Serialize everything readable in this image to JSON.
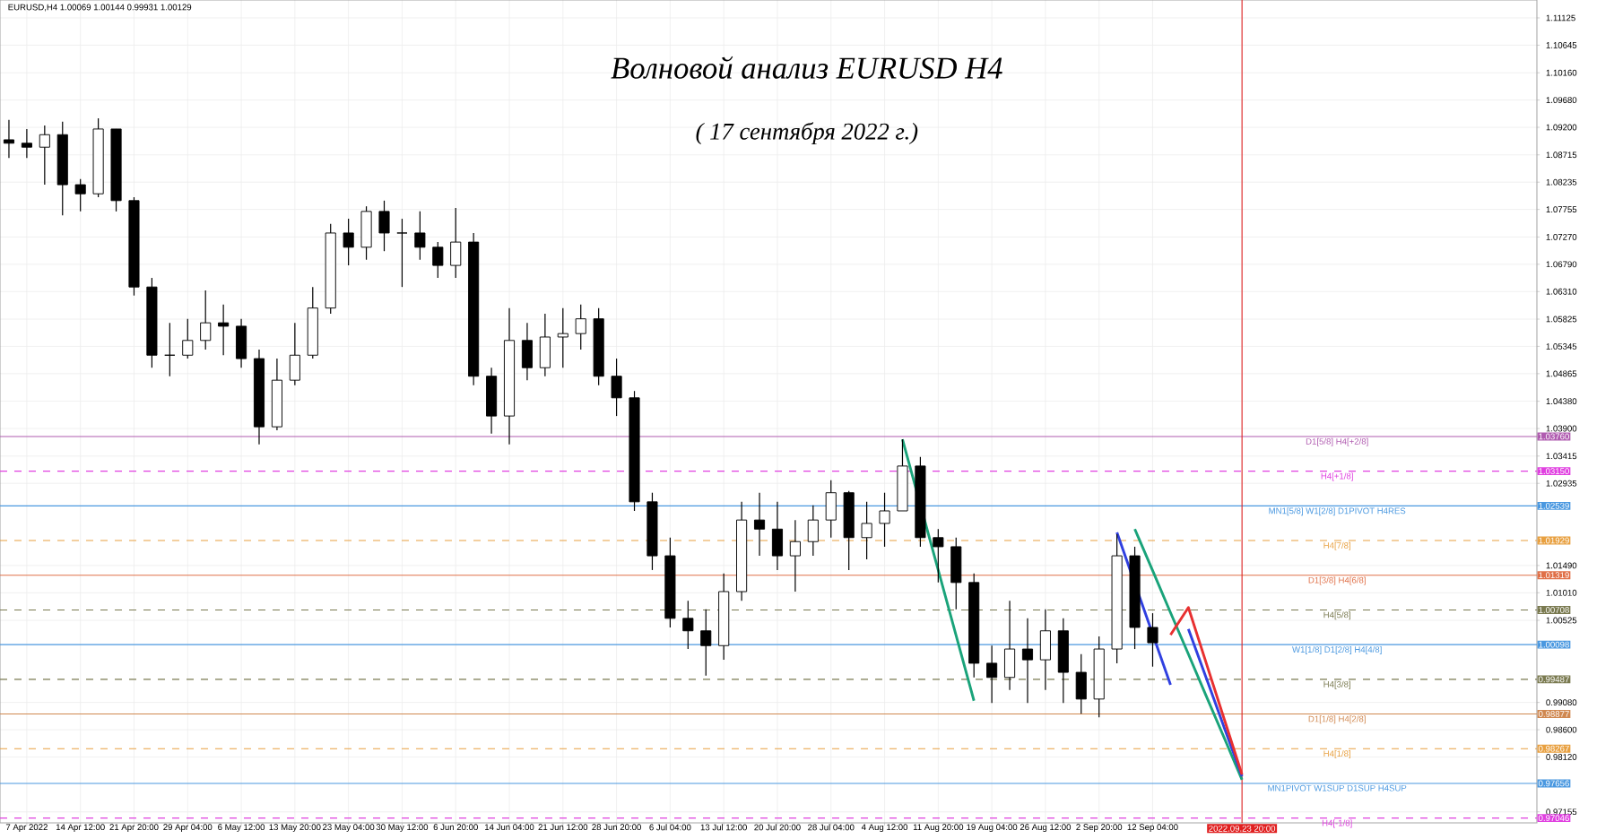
{
  "chart_data": {
    "type": "candlestick",
    "title": "Волновой анализ EURUSD H4",
    "subtitle": "( 17 сентября 2022 г.)",
    "color": "#000000",
    "grid": true,
    "marker": "none",
    "categories": [
      null,
      "7 Apr 2022",
      null,
      null,
      "14 Apr 12:00",
      null,
      null,
      "21 Apr 20:00",
      null,
      null,
      "29 Apr 04:00",
      null,
      null,
      "6 May 12:00",
      null,
      null,
      "13 May 20:00",
      null,
      null,
      "23 May 04:00",
      null,
      null,
      "30 May 12:00",
      null,
      null,
      "6 Jun 20:00",
      null,
      null,
      "14 Jun 04:00",
      null,
      null,
      "21 Jun 12:00",
      null,
      null,
      "28 Jun 20:00",
      null,
      null,
      "6 Jul 04:00",
      null,
      null,
      "13 Jul 12:00",
      null,
      null,
      "20 Jul 20:00",
      null,
      null,
      "28 Jul 04:00",
      null,
      null,
      "4 Aug 12:00",
      null,
      null,
      "11 Aug 20:00",
      null,
      null,
      "19 Aug 04:00",
      null,
      null,
      "26 Aug 12:00",
      null,
      null,
      "2 Sep 20:00",
      null,
      null,
      "12 Sep 04:00",
      null,
      null,
      null,
      null,
      "2022.09.23 20:00",
      null,
      null,
      null,
      null,
      null,
      null,
      null,
      null,
      null,
      null,
      null,
      null,
      null,
      null,
      null,
      null
    ],
    "ohlc": [
      [
        1.0898,
        1.0933,
        1.0866,
        1.0892
      ],
      [
        1.0892,
        1.0917,
        1.0866,
        1.0885
      ],
      [
        1.0885,
        1.0923,
        1.0819,
        1.0907
      ],
      [
        1.0907,
        1.093,
        1.0765,
        1.0819
      ],
      [
        1.0819,
        1.0829,
        1.0772,
        1.0803
      ],
      [
        1.0803,
        1.0936,
        1.0797,
        1.0917
      ],
      [
        1.0917,
        1.0917,
        1.0772,
        1.0791
      ],
      [
        1.0791,
        1.0797,
        1.0624,
        1.0639
      ],
      [
        1.0639,
        1.0655,
        1.0497,
        1.0519
      ],
      [
        1.0519,
        1.0576,
        1.0482,
        1.0519
      ],
      [
        1.0519,
        1.0583,
        1.0513,
        1.0545
      ],
      [
        1.0545,
        1.0633,
        1.0529,
        1.0576
      ],
      [
        1.0576,
        1.0608,
        1.0519,
        1.057
      ],
      [
        1.057,
        1.0583,
        1.0497,
        1.0513
      ],
      [
        1.0513,
        1.0529,
        1.0362,
        1.0393
      ],
      [
        1.0393,
        1.0513,
        1.0387,
        1.0475
      ],
      [
        1.0475,
        1.0576,
        1.0466,
        1.0519
      ],
      [
        1.0519,
        1.0639,
        1.0513,
        1.0602
      ],
      [
        1.0602,
        1.075,
        1.0592,
        1.0734
      ],
      [
        1.0734,
        1.0759,
        1.0677,
        1.0709
      ],
      [
        1.0709,
        1.0781,
        1.0687,
        1.0772
      ],
      [
        1.0772,
        1.0791,
        1.0702,
        1.0734
      ],
      [
        1.0734,
        1.0759,
        1.0639,
        1.0734
      ],
      [
        1.0734,
        1.0772,
        1.0687,
        1.0709
      ],
      [
        1.0709,
        1.0718,
        1.0655,
        1.0677
      ],
      [
        1.0677,
        1.0778,
        1.0655,
        1.0718
      ],
      [
        1.0718,
        1.0734,
        1.0466,
        1.0482
      ],
      [
        1.0482,
        1.0497,
        1.0381,
        1.0412
      ],
      [
        1.0412,
        1.0602,
        1.0362,
        1.0545
      ],
      [
        1.0545,
        1.0576,
        1.0475,
        1.0497
      ],
      [
        1.0497,
        1.0592,
        1.0482,
        1.0551
      ],
      [
        1.0551,
        1.0602,
        1.0497,
        1.0557
      ],
      [
        1.0557,
        1.0608,
        1.0529,
        1.0583
      ],
      [
        1.0583,
        1.0602,
        1.0466,
        1.0482
      ],
      [
        1.0482,
        1.0513,
        1.0412,
        1.0444
      ],
      [
        1.0444,
        1.0456,
        1.0245,
        1.0261
      ],
      [
        1.0261,
        1.0277,
        1.0141,
        1.0166
      ],
      [
        1.0166,
        1.0198,
        1.004,
        1.0056
      ],
      [
        1.0056,
        1.0087,
        1.0002,
        1.0034
      ],
      [
        1.0034,
        1.0072,
        0.9955,
        1.0008
      ],
      [
        1.0008,
        1.0135,
        0.9983,
        1.0103
      ],
      [
        1.0103,
        1.0261,
        1.0087,
        1.0229
      ],
      [
        1.0229,
        1.0277,
        1.0166,
        1.0213
      ],
      [
        1.0213,
        1.0261,
        1.0141,
        1.0166
      ],
      [
        1.0166,
        1.0229,
        1.0103,
        1.0191
      ],
      [
        1.0191,
        1.0255,
        1.0166,
        1.0229
      ],
      [
        1.0229,
        1.0299,
        1.0198,
        1.0277
      ],
      [
        1.0277,
        1.028,
        1.0141,
        1.0198
      ],
      [
        1.0198,
        1.0261,
        1.016,
        1.0223
      ],
      [
        1.0223,
        1.0277,
        1.0182,
        1.0245
      ],
      [
        1.0245,
        1.0371,
        1.0245,
        1.0324
      ],
      [
        1.0324,
        1.034,
        1.0182,
        1.0198
      ],
      [
        1.0198,
        1.0213,
        1.0119,
        1.0182
      ],
      [
        1.0182,
        1.0198,
        1.0072,
        1.0119
      ],
      [
        1.0119,
        1.0135,
        0.9952,
        0.9977
      ],
      [
        0.9977,
        1.0008,
        0.9907,
        0.9952
      ],
      [
        0.9952,
        1.0087,
        0.993,
        1.0002
      ],
      [
        1.0002,
        1.0056,
        0.9907,
        0.9983
      ],
      [
        0.9983,
        1.0072,
        0.993,
        1.0034
      ],
      [
        1.0034,
        1.0056,
        0.9907,
        0.9961
      ],
      [
        0.9961,
        0.9993,
        0.9888,
        0.9914
      ],
      [
        0.9914,
        1.0024,
        0.9882,
        1.0002
      ],
      [
        1.0002,
        1.0204,
        0.9977,
        1.0166
      ],
      [
        1.0166,
        1.0182,
        1.0002,
        1.004
      ],
      [
        1.004,
        1.0065,
        0.9971,
        1.0013
      ],
      null,
      null,
      null,
      null,
      null,
      null,
      null,
      null,
      null,
      null,
      null,
      null,
      null,
      null,
      null,
      null,
      null,
      null,
      null,
      null,
      null
    ],
    "series": [
      {
        "type": "line",
        "color": "#1aa37a",
        "values": [
          null,
          null,
          null,
          null,
          null,
          null,
          null,
          null,
          null,
          null,
          null,
          null,
          null,
          null,
          null,
          null,
          null,
          null,
          null,
          null,
          null,
          null,
          null,
          null,
          null,
          null,
          null,
          null,
          null,
          null,
          null,
          null,
          null,
          null,
          null,
          null,
          null,
          null,
          null,
          null,
          null,
          null,
          null,
          null,
          null,
          null,
          null,
          null,
          null,
          null,
          1.0371,
          1.0256,
          1.0141,
          1.0026,
          0.9911,
          null,
          null,
          null,
          null,
          null,
          null,
          null,
          null,
          null,
          null,
          null,
          null,
          null,
          null,
          null,
          null,
          null,
          null,
          null,
          null,
          null,
          null,
          null,
          null,
          null,
          null,
          null,
          null,
          null,
          null,
          null
        ]
      },
      {
        "type": "line",
        "color": "#1aa37a",
        "values": [
          null,
          null,
          null,
          null,
          null,
          null,
          null,
          null,
          null,
          null,
          null,
          null,
          null,
          null,
          null,
          null,
          null,
          null,
          null,
          null,
          null,
          null,
          null,
          null,
          null,
          null,
          null,
          null,
          null,
          null,
          null,
          null,
          null,
          null,
          null,
          null,
          null,
          null,
          null,
          null,
          null,
          null,
          null,
          null,
          null,
          null,
          null,
          null,
          null,
          null,
          null,
          null,
          null,
          null,
          null,
          null,
          null,
          null,
          null,
          null,
          null,
          null,
          null,
          1.0213,
          1.014,
          1.0066,
          0.9993,
          0.9919,
          0.9846,
          0.9772,
          null,
          null,
          null,
          null,
          null,
          null,
          null,
          null,
          null,
          null,
          null,
          null,
          null,
          null,
          null,
          null
        ]
      },
      {
        "type": "line",
        "color": "#3040e0",
        "values": [
          null,
          null,
          null,
          null,
          null,
          null,
          null,
          null,
          null,
          null,
          null,
          null,
          null,
          null,
          null,
          null,
          null,
          null,
          null,
          null,
          null,
          null,
          null,
          null,
          null,
          null,
          null,
          null,
          null,
          null,
          null,
          null,
          null,
          null,
          null,
          null,
          null,
          null,
          null,
          null,
          null,
          null,
          null,
          null,
          null,
          null,
          null,
          null,
          null,
          null,
          null,
          null,
          null,
          null,
          null,
          null,
          null,
          null,
          null,
          null,
          null,
          null,
          1.0207,
          null,
          null,
          0.9939,
          null,
          null,
          null,
          null,
          null,
          null,
          null,
          null,
          null,
          null,
          null,
          null,
          null,
          null,
          null,
          null,
          null,
          null,
          null,
          null
        ]
      },
      {
        "type": "line",
        "color": "#3040e0",
        "values": [
          null,
          null,
          null,
          null,
          null,
          null,
          null,
          null,
          null,
          null,
          null,
          null,
          null,
          null,
          null,
          null,
          null,
          null,
          null,
          null,
          null,
          null,
          null,
          null,
          null,
          null,
          null,
          null,
          null,
          null,
          null,
          null,
          null,
          null,
          null,
          null,
          null,
          null,
          null,
          null,
          null,
          null,
          null,
          null,
          null,
          null,
          null,
          null,
          null,
          null,
          null,
          null,
          null,
          null,
          null,
          null,
          null,
          null,
          null,
          null,
          null,
          null,
          null,
          null,
          null,
          null,
          1.0037,
          0.9951,
          0.9864,
          0.9778,
          null,
          null,
          null,
          null,
          null,
          null,
          null,
          null,
          null,
          null,
          null,
          null,
          null,
          null,
          null,
          null
        ]
      },
      {
        "type": "line",
        "color": "#e83030",
        "values": [
          null,
          null,
          null,
          null,
          null,
          null,
          null,
          null,
          null,
          null,
          null,
          null,
          null,
          null,
          null,
          null,
          null,
          null,
          null,
          null,
          null,
          null,
          null,
          null,
          null,
          null,
          null,
          null,
          null,
          null,
          null,
          null,
          null,
          null,
          null,
          null,
          null,
          null,
          null,
          null,
          null,
          null,
          null,
          null,
          null,
          null,
          null,
          null,
          null,
          null,
          null,
          null,
          null,
          null,
          null,
          null,
          null,
          null,
          null,
          null,
          null,
          null,
          null,
          null,
          null,
          1.0027,
          1.0075,
          0.9977,
          0.9879,
          0.9781,
          null,
          null,
          null,
          null,
          null,
          null,
          null,
          null,
          null,
          null,
          null,
          null,
          null,
          null,
          null,
          null
        ]
      }
    ],
    "ylim": [
      0.96961,
      1.1144
    ],
    "yticks": [
      {
        "value": 1.11125,
        "label": "1.11125"
      },
      {
        "value": 1.10645,
        "label": "1.10645"
      },
      {
        "value": 1.1016,
        "label": "1.10160"
      },
      {
        "value": 1.0968,
        "label": "1.09680"
      },
      {
        "value": 1.092,
        "label": "1.09200"
      },
      {
        "value": 1.08715,
        "label": "1.08715"
      },
      {
        "value": 1.08235,
        "label": "1.08235"
      },
      {
        "value": 1.07755,
        "label": "1.07755"
      },
      {
        "value": 1.0727,
        "label": "1.07270"
      },
      {
        "value": 1.0679,
        "label": "1.06790"
      },
      {
        "value": 1.0631,
        "label": "1.06310"
      },
      {
        "value": 1.05825,
        "label": "1.05825"
      },
      {
        "value": 1.05345,
        "label": "1.05345"
      },
      {
        "value": 1.04865,
        "label": "1.04865"
      },
      {
        "value": 1.0438,
        "label": "1.04380"
      },
      {
        "value": 1.039,
        "label": "1.03900"
      },
      {
        "value": 1.03415,
        "label": "1.03415"
      },
      {
        "value": 1.02935,
        "label": "1.02935"
      },
      {
        "value": 1.0149,
        "label": "1.01490"
      },
      {
        "value": 1.0101,
        "label": "1.01010"
      },
      {
        "value": 1.00525,
        "label": "1.00525"
      },
      {
        "value": 0.9908,
        "label": "0.99080"
      },
      {
        "value": 0.986,
        "label": "0.98600"
      },
      {
        "value": 0.9812,
        "label": "0.98120"
      },
      {
        "value": 0.97155,
        "label": "0.97155"
      }
    ],
    "ref_lines": [
      {
        "axis": "y",
        "value": 1.0376,
        "label": "D1[5/8] H4[+2/8]",
        "color": "#b05cb0",
        "line_style": "solid"
      },
      {
        "axis": "y",
        "value": 1.0315,
        "label": "H4[+1/8]",
        "color": "#e040e0",
        "line_style": "dashed"
      },
      {
        "axis": "y",
        "value": 1.02539,
        "label": "MN1[5/8] W1[2/8] D1PIVOT H4RES",
        "color": "#4a98e0",
        "line_style": "solid"
      },
      {
        "axis": "y",
        "value": 1.01929,
        "label": "H4[7/8]",
        "color": "#e8a040",
        "line_style": "dashed"
      },
      {
        "axis": "y",
        "value": 1.01319,
        "label": "D1[3/8] H4[6/8]",
        "color": "#e07048",
        "line_style": "solid"
      },
      {
        "axis": "y",
        "value": 1.00708,
        "label": "H4[5/8]",
        "color": "#7a7a50",
        "line_style": "dashed"
      },
      {
        "axis": "y",
        "value": 1.00098,
        "label": "W1[1/8] D1[2/8] H4[4/8]",
        "color": "#4a98e0",
        "line_style": "solid"
      },
      {
        "axis": "y",
        "value": 0.99487,
        "label": "H4[3/8]",
        "color": "#7a7a50",
        "line_style": "dashed"
      },
      {
        "axis": "y",
        "value": 0.98877,
        "label": "D1[1/8] H4[2/8]",
        "color": "#d08850",
        "line_style": "solid"
      },
      {
        "axis": "y",
        "value": 0.98267,
        "label": "H4[1/8]",
        "color": "#e8a040",
        "line_style": "dashed"
      },
      {
        "axis": "y",
        "value": 0.97656,
        "label": "MN1PIVOT W1SUP D1SUP H4SUP",
        "color": "#4a98e0",
        "line_style": "solid"
      },
      {
        "axis": "y",
        "value": 0.97046,
        "label": "H4[-1/8]",
        "color": "#e040e0",
        "line_style": "dashed"
      },
      {
        "axis": "x",
        "value": "2022.09.23 20:00",
        "color": "#e02020",
        "line_style": "solid"
      }
    ],
    "annotations": [
      "EURUSD,H4  1.00069 1.00144 0.99931 1.00129",
      "1.03760",
      "1.03150",
      "1.02539",
      "1.01929",
      "1.01319",
      "1.00708",
      "1.00098",
      "0.99487",
      "0.98877",
      "0.98267",
      "0.97656",
      "0.97046"
    ]
  }
}
